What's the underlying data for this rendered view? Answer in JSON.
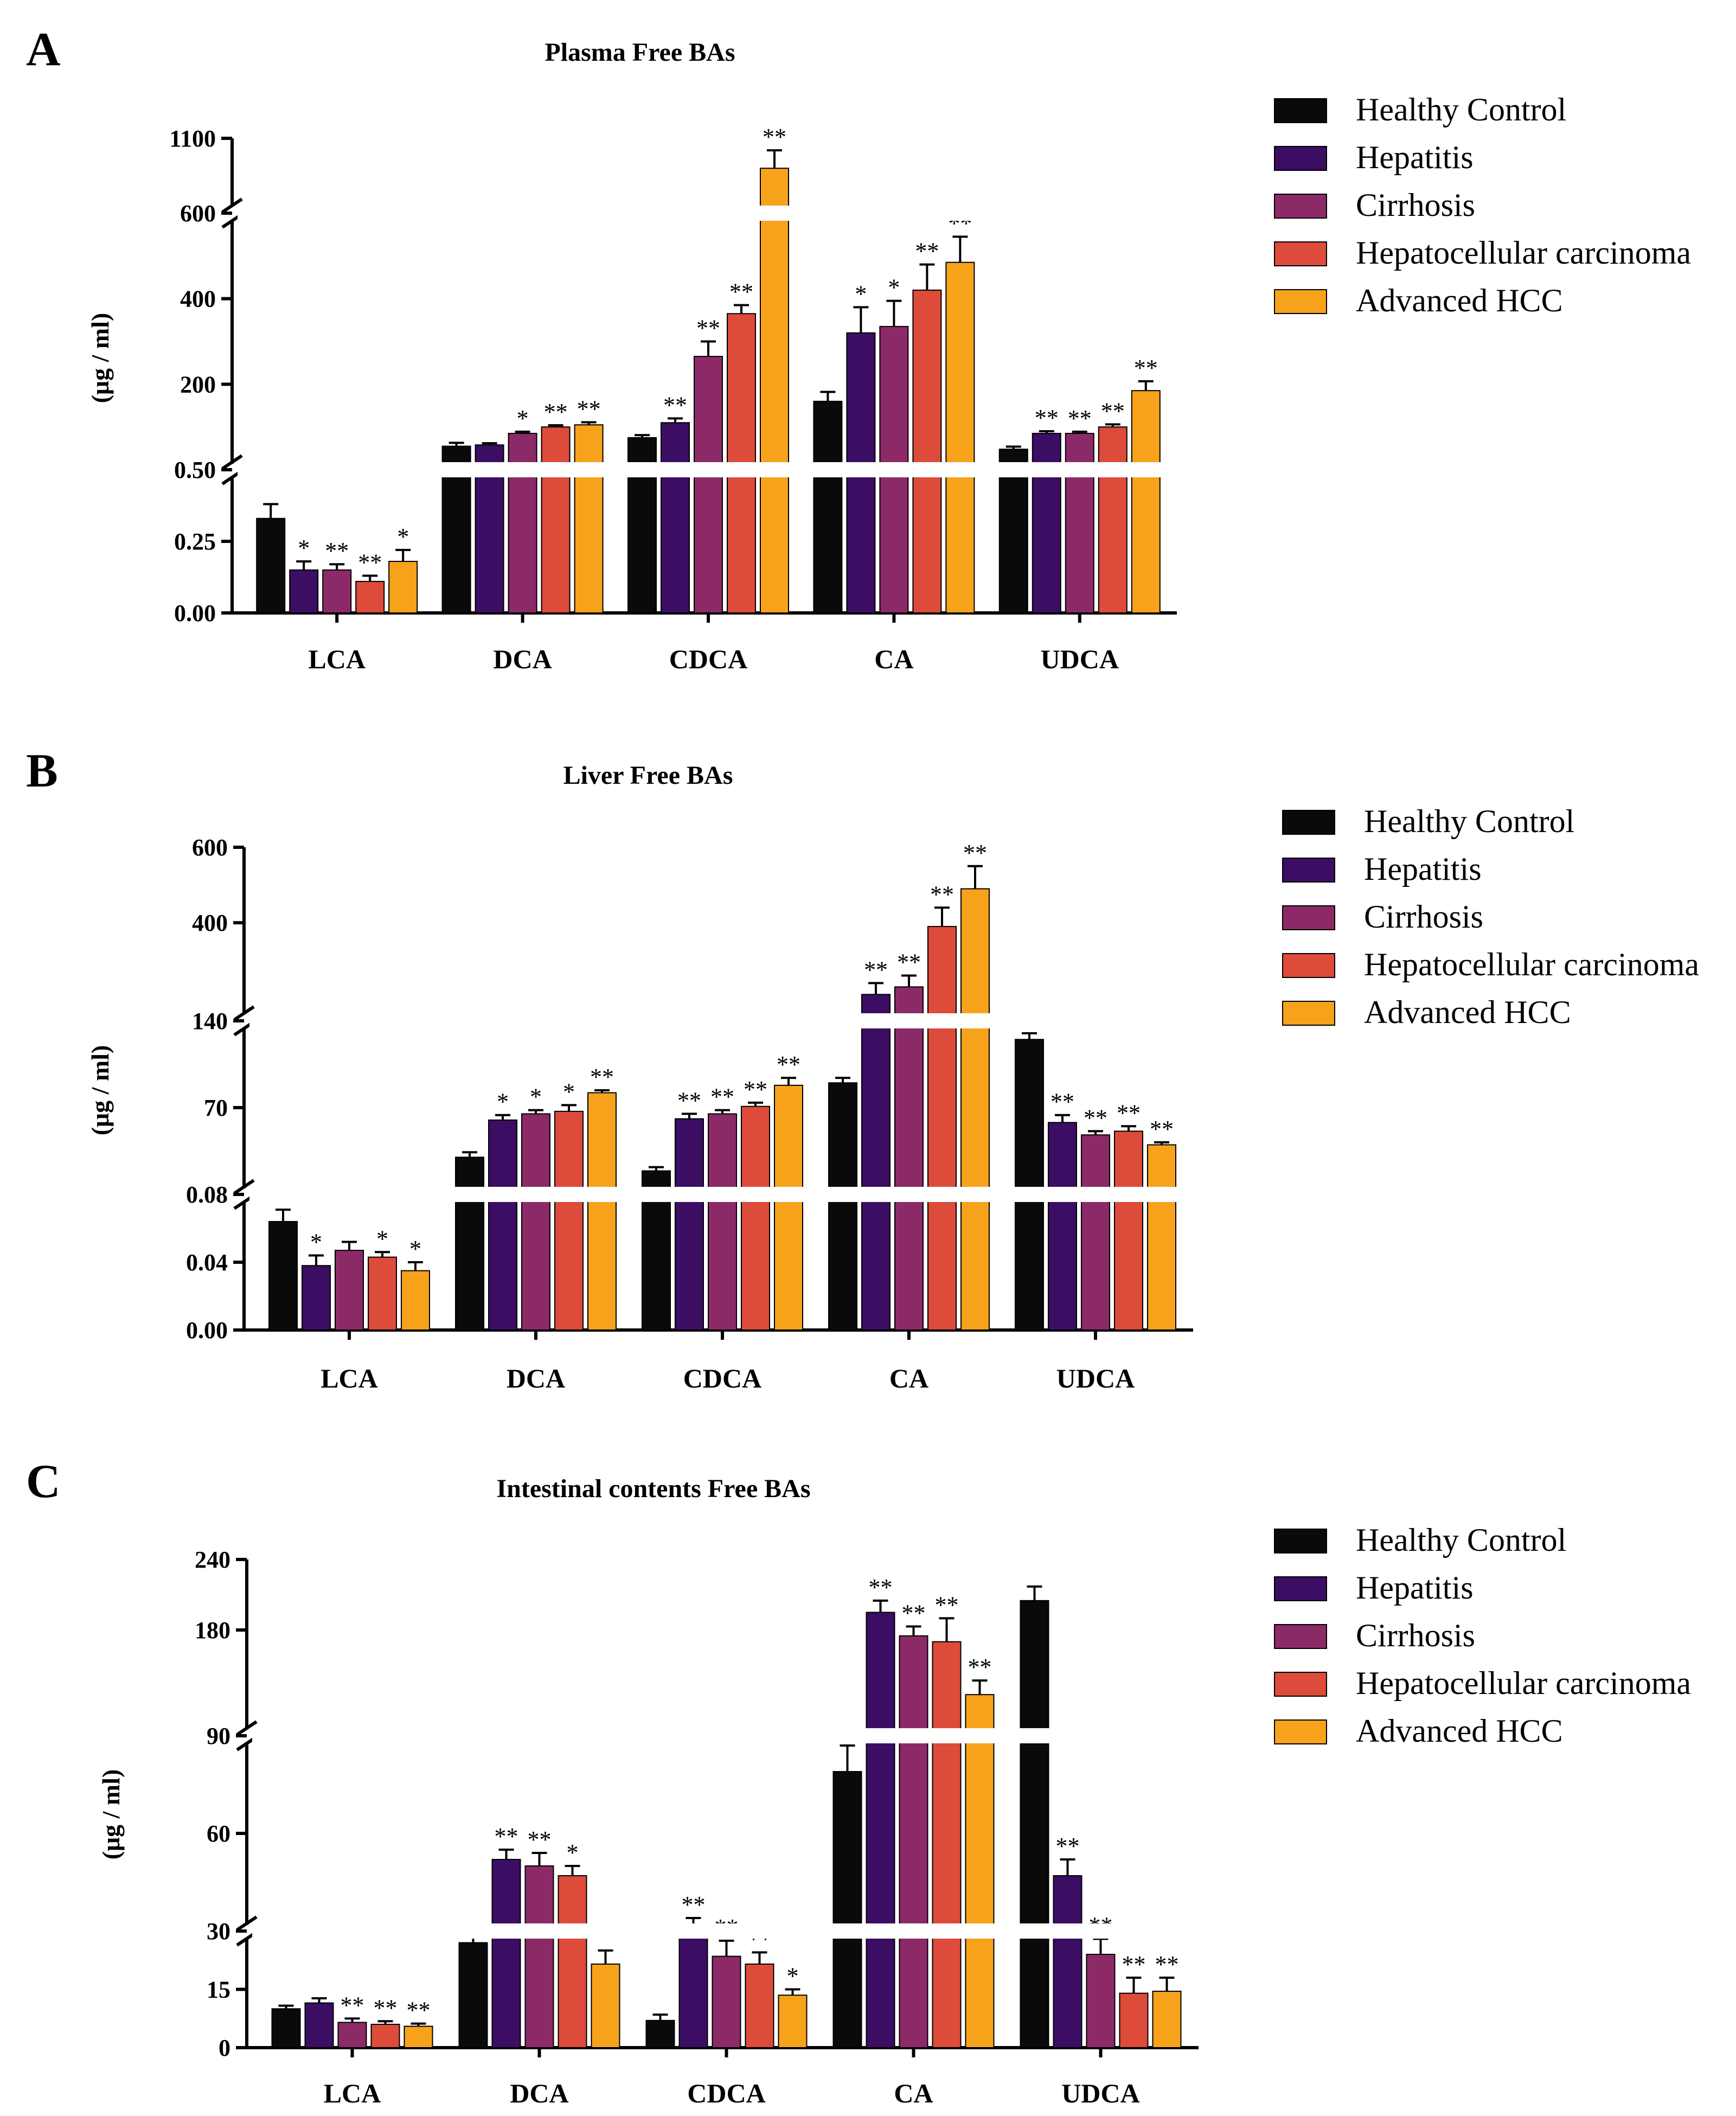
{
  "colors": {
    "Healthy Control": "#0a0a0a",
    "Hepatitis": "#3b0d63",
    "Cirrhosis": "#8c2a68",
    "Hepatocellular carcinoma": "#dd4b3a",
    "Advanced HCC": "#f7a21b"
  },
  "chart_data": [
    {
      "panel": "A",
      "type": "bar",
      "title": "Plasma Free BAs",
      "ylabel": "(μg / ml)",
      "xlabel": "",
      "categories": [
        "LCA",
        "DCA",
        "CDCA",
        "CA",
        "UDCA"
      ],
      "y_segments": [
        {
          "range": [
            0,
            0.5
          ],
          "ticks": [
            "0.00",
            "0.25",
            "0.50"
          ]
        },
        {
          "range": [
            0,
            600
          ],
          "ticks": [
            "200",
            "400",
            "600"
          ]
        },
        {
          "range": [
            600,
            1100
          ],
          "ticks": [
            "1100"
          ]
        }
      ],
      "legend": [
        "Healthy Control",
        "Hepatitis",
        "Cirrhosis",
        "Hepatocellular carcinoma",
        "Advanced  HCC"
      ],
      "series": [
        {
          "name": "Healthy Control",
          "values": [
            0.33,
            55,
            75,
            160,
            48
          ],
          "errors": [
            0.05,
            8,
            6,
            22,
            6
          ],
          "sig": [
            "",
            "",
            "",
            "",
            ""
          ]
        },
        {
          "name": "Hepatitis",
          "values": [
            0.15,
            58,
            110,
            320,
            85
          ],
          "errors": [
            0.03,
            4,
            10,
            60,
            5
          ],
          "sig": [
            "*",
            "",
            "**",
            "*",
            "**"
          ]
        },
        {
          "name": "Cirrhosis",
          "values": [
            0.15,
            85,
            265,
            335,
            85
          ],
          "errors": [
            0.02,
            4,
            35,
            60,
            4
          ],
          "sig": [
            "**",
            "*",
            "**",
            "*",
            "**"
          ]
        },
        {
          "name": "Hepatocellular carcinoma",
          "values": [
            0.11,
            100,
            365,
            420,
            100
          ],
          "errors": [
            0.02,
            4,
            20,
            60,
            6
          ],
          "sig": [
            "**",
            "**",
            "**",
            "**",
            "**"
          ]
        },
        {
          "name": "Advanced HCC",
          "values": [
            0.18,
            105,
            900,
            485,
            185
          ],
          "errors": [
            0.04,
            6,
            120,
            60,
            22
          ],
          "sig": [
            "*",
            "**",
            "**",
            "**",
            "**"
          ]
        }
      ]
    },
    {
      "panel": "B",
      "type": "bar",
      "title": "Liver Free BAs",
      "ylabel": "(μg / ml)",
      "xlabel": "",
      "categories": [
        "LCA",
        "DCA",
        "CDCA",
        "CA",
        "UDCA"
      ],
      "y_segments": [
        {
          "range": [
            0,
            0.08
          ],
          "ticks": [
            "0.00",
            "0.04",
            "0.08"
          ]
        },
        {
          "range": [
            0,
            140
          ],
          "ticks": [
            "70",
            "140"
          ]
        },
        {
          "range": [
            140,
            600
          ],
          "ticks": [
            "400",
            "600"
          ]
        }
      ],
      "legend": [
        "Healthy Control",
        "Hepatitis",
        "Cirrhosis",
        "Hepatocellular carcinoma",
        "Advanced  HCC"
      ],
      "series": [
        {
          "name": "Healthy Control",
          "values": [
            0.064,
            30,
            19,
            90,
            125
          ],
          "errors": [
            0.007,
            4,
            3,
            4,
            5
          ],
          "sig": [
            "",
            "",
            "",
            "",
            ""
          ]
        },
        {
          "name": "Hepatitis",
          "values": [
            0.038,
            60,
            61,
            210,
            58
          ],
          "errors": [
            0.006,
            4,
            4,
            30,
            6
          ],
          "sig": [
            "*",
            "*",
            "**",
            "**",
            "**"
          ]
        },
        {
          "name": "Cirrhosis",
          "values": [
            0.047,
            65,
            65,
            230,
            48
          ],
          "errors": [
            0.005,
            3,
            3,
            30,
            3
          ],
          "sig": [
            "",
            "*",
            "**",
            "**",
            "**"
          ]
        },
        {
          "name": "Hepatocellular carcinoma",
          "values": [
            0.043,
            67,
            71,
            390,
            51
          ],
          "errors": [
            0.003,
            5,
            3,
            50,
            4
          ],
          "sig": [
            "*",
            "*",
            "**",
            "**",
            "**"
          ]
        },
        {
          "name": "Advanced HCC",
          "values": [
            0.035,
            82,
            88,
            490,
            40
          ],
          "errors": [
            0.005,
            2,
            6,
            60,
            2
          ],
          "sig": [
            "*",
            "**",
            "**",
            "**",
            "**"
          ]
        }
      ]
    },
    {
      "panel": "C",
      "type": "bar",
      "title": "Intestinal contents Free BAs",
      "ylabel": "(μg / ml)",
      "xlabel": "",
      "categories": [
        "LCA",
        "DCA",
        "CDCA",
        "CA",
        "UDCA"
      ],
      "y_segments": [
        {
          "range": [
            0,
            30
          ],
          "ticks": [
            "0",
            "15",
            "30"
          ]
        },
        {
          "range": [
            30,
            90
          ],
          "ticks": [
            "60",
            "90"
          ]
        },
        {
          "range": [
            90,
            240
          ],
          "ticks": [
            "180",
            "240"
          ]
        }
      ],
      "legend": [
        "Healthy Control",
        "Hepatitis",
        "Cirrhosis",
        "Hepatocellular carcinoma",
        "Advanced  HCC"
      ],
      "series": [
        {
          "name": "Healthy Control",
          "values": [
            10,
            27,
            7,
            79,
            205
          ],
          "errors": [
            0.8,
            2,
            1.5,
            8,
            12
          ],
          "sig": [
            "",
            "",
            "",
            "",
            ""
          ]
        },
        {
          "name": "Hepatitis",
          "values": [
            11.5,
            52,
            32,
            195,
            47
          ],
          "errors": [
            1.2,
            3,
            2,
            10,
            5
          ],
          "sig": [
            "",
            "**",
            "**",
            "**",
            "**"
          ]
        },
        {
          "name": "Cirrhosis",
          "values": [
            6.5,
            50,
            23.5,
            175,
            24
          ],
          "errors": [
            1,
            4,
            4,
            8,
            4
          ],
          "sig": [
            "**",
            "**",
            "**",
            "**",
            "**"
          ]
        },
        {
          "name": "Hepatocellular carcinoma",
          "values": [
            6,
            47,
            21.5,
            170,
            14
          ],
          "errors": [
            0.8,
            3,
            3,
            20,
            4
          ],
          "sig": [
            "**",
            "*",
            "**",
            "**",
            "**"
          ]
        },
        {
          "name": "Advanced HCC",
          "values": [
            5.5,
            21.5,
            13.5,
            125,
            14.5
          ],
          "errors": [
            0.7,
            3.5,
            1.5,
            12,
            3.5
          ],
          "sig": [
            "**",
            "",
            "*",
            "**",
            "**"
          ]
        }
      ]
    }
  ]
}
